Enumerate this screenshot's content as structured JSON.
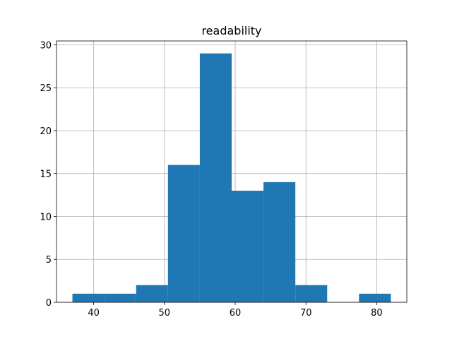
{
  "chart_data": {
    "type": "histogram",
    "title": "readability",
    "bins": [
      37,
      41.5,
      46,
      50.5,
      55,
      59.5,
      64,
      68.5,
      73,
      77.5,
      82
    ],
    "values": [
      1,
      1,
      2,
      16,
      29,
      13,
      14,
      2,
      0,
      1
    ],
    "color": "#1f77b4",
    "xlim": [
      34.75,
      84.25
    ],
    "xticks": [
      40,
      50,
      60,
      70,
      80
    ],
    "ylim": [
      0,
      30.45
    ],
    "yticks": [
      0,
      5,
      10,
      15,
      20,
      25,
      30
    ],
    "grid": true
  }
}
